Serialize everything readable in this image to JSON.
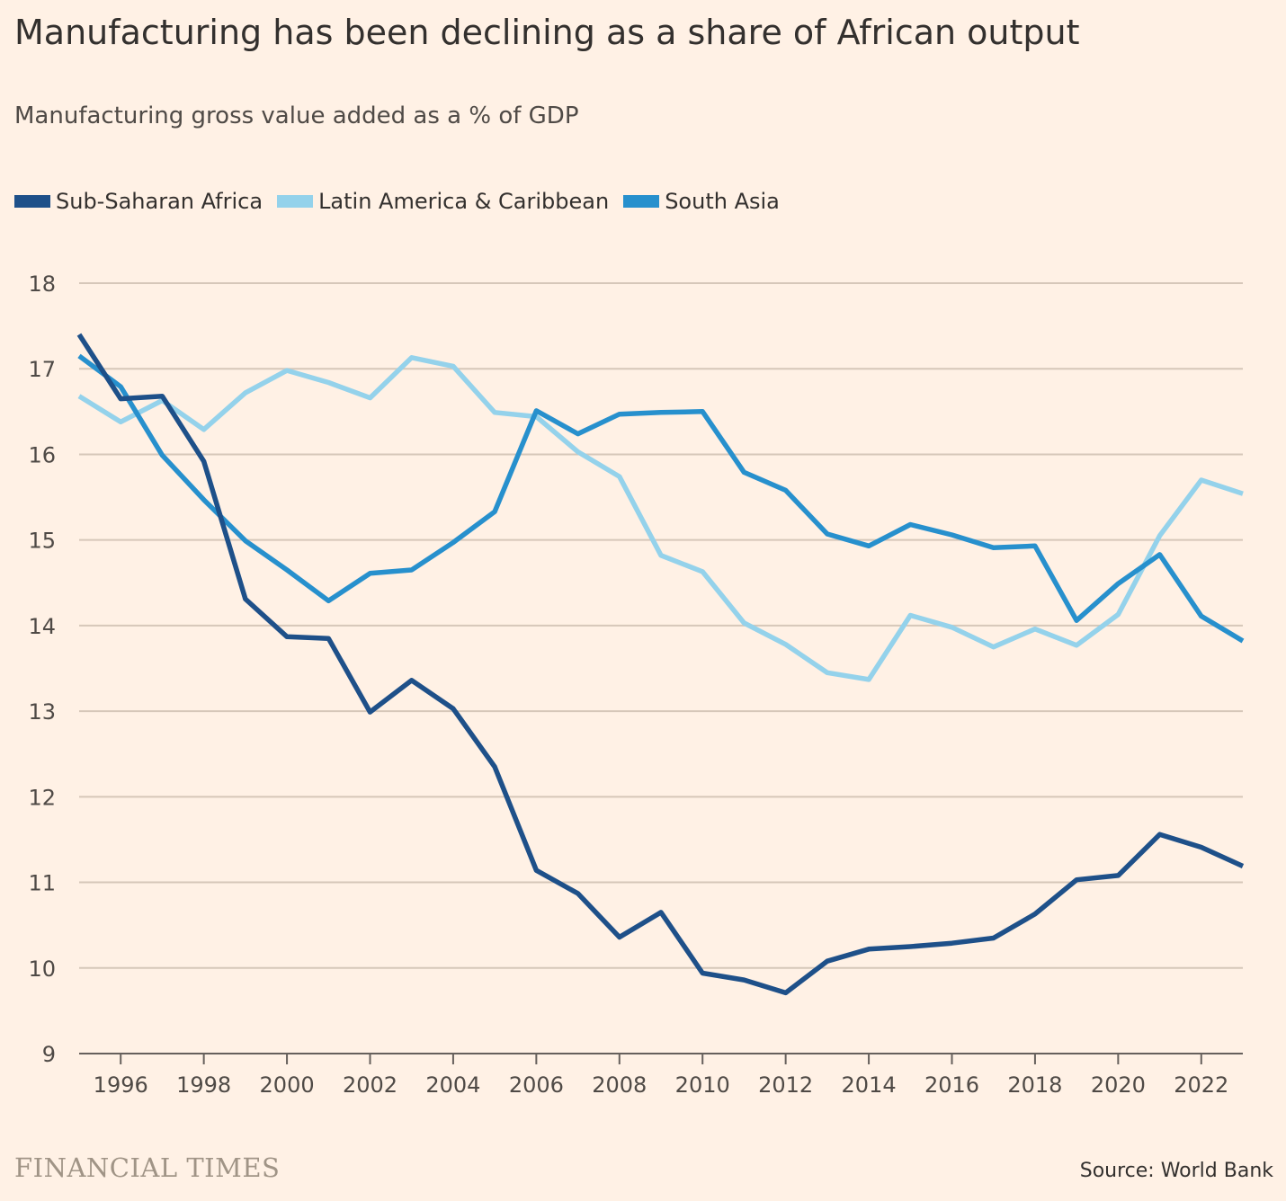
{
  "title": "Manufacturing has been declining as a share of African output",
  "subtitle": "Manufacturing gross value added as a % of GDP",
  "branding": "FINANCIAL TIMES",
  "source": "Source: World Bank",
  "colors": {
    "background": "#fff1e5",
    "gridline": "#d6c7b9",
    "axis": "#66605c"
  },
  "chart_data": {
    "type": "line",
    "x": [
      1995,
      1996,
      1997,
      1998,
      1999,
      2000,
      2001,
      2002,
      2003,
      2004,
      2005,
      2006,
      2007,
      2008,
      2009,
      2010,
      2011,
      2012,
      2013,
      2014,
      2015,
      2016,
      2017,
      2018,
      2019,
      2020,
      2021,
      2022,
      2023
    ],
    "xlim": [
      1995,
      2023
    ],
    "ylim": [
      9,
      18
    ],
    "xticks": [
      1996,
      1998,
      2000,
      2002,
      2004,
      2006,
      2008,
      2010,
      2012,
      2014,
      2016,
      2018,
      2020,
      2022
    ],
    "yticks": [
      9,
      10,
      11,
      12,
      13,
      14,
      15,
      16,
      17,
      18
    ],
    "grid": "horizontal",
    "legend_position": "top-left",
    "series": [
      {
        "name": "Sub-Saharan Africa",
        "color": "#1e5089",
        "values": [
          17.4,
          16.65,
          16.68,
          15.92,
          14.31,
          13.87,
          13.85,
          12.99,
          13.36,
          13.03,
          12.35,
          11.14,
          10.87,
          10.36,
          10.65,
          9.94,
          9.86,
          9.71,
          10.08,
          10.22,
          10.25,
          10.29,
          10.35,
          10.63,
          11.03,
          11.08,
          11.56,
          11.41,
          11.19
        ]
      },
      {
        "name": "Latin America & Caribbean",
        "color": "#94d2eb",
        "values": [
          16.68,
          16.38,
          16.63,
          16.29,
          16.72,
          16.98,
          16.84,
          16.66,
          17.13,
          17.03,
          16.49,
          16.44,
          16.03,
          15.74,
          14.82,
          14.63,
          14.03,
          13.78,
          13.45,
          13.37,
          14.12,
          13.98,
          13.75,
          13.96,
          13.77,
          14.13,
          15.05,
          15.7,
          15.54
        ]
      },
      {
        "name": "South Asia",
        "color": "#2790cd",
        "values": [
          17.15,
          16.79,
          15.99,
          15.47,
          14.99,
          14.65,
          14.29,
          14.61,
          14.65,
          14.97,
          15.33,
          16.51,
          16.24,
          16.47,
          16.49,
          16.5,
          15.79,
          15.58,
          15.07,
          14.93,
          15.18,
          15.06,
          14.91,
          14.93,
          14.06,
          14.49,
          14.83,
          14.11,
          13.82
        ]
      }
    ]
  }
}
